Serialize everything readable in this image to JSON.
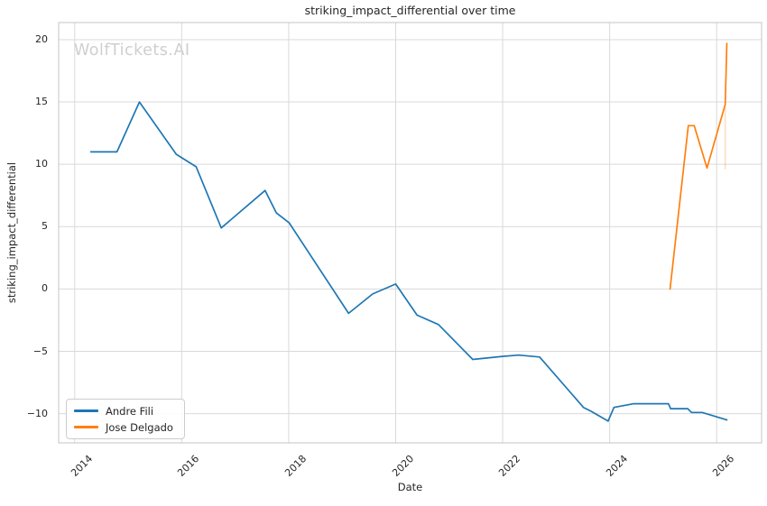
{
  "watermark": {
    "text": "WolfTickets.AI",
    "color": "#cfcfcf"
  },
  "chart_data": {
    "type": "line",
    "title": "striking_impact_differential over time",
    "xlabel": "Date",
    "ylabel": "striking_impact_differential",
    "xlim": [
      2013.7,
      2026.84
    ],
    "ylim": [
      -12.34,
      21.37
    ],
    "grid": true,
    "grid_color": "#d9d9d9",
    "border_color": "#c6c6c6",
    "text_color": "#262626",
    "background": "#ffffff",
    "legend_position": "lower-left",
    "x_ticks": [
      {
        "value": 2014,
        "label": "2014"
      },
      {
        "value": 2016,
        "label": "2016"
      },
      {
        "value": 2018,
        "label": "2018"
      },
      {
        "value": 2020,
        "label": "2020"
      },
      {
        "value": 2022,
        "label": "2022"
      },
      {
        "value": 2024,
        "label": "2024"
      },
      {
        "value": 2026,
        "label": "2026"
      }
    ],
    "y_ticks": [
      {
        "value": 20,
        "label": "20"
      },
      {
        "value": 15,
        "label": "15"
      },
      {
        "value": 10,
        "label": "10"
      },
      {
        "value": 5,
        "label": "5"
      },
      {
        "value": 0,
        "label": "0"
      },
      {
        "value": -5,
        "label": "−5"
      },
      {
        "value": -10,
        "label": "−10"
      }
    ],
    "series": [
      {
        "name": "Andre Fili",
        "color": "#1f77b4",
        "points": [
          [
            2014.3,
            11.0
          ],
          [
            2014.79,
            11.0
          ],
          [
            2015.21,
            15.0
          ],
          [
            2015.9,
            10.8
          ],
          [
            2016.27,
            9.8
          ],
          [
            2016.74,
            4.9
          ],
          [
            2017.56,
            7.9
          ],
          [
            2017.77,
            6.1
          ],
          [
            2018.01,
            5.3
          ],
          [
            2019.12,
            -1.95
          ],
          [
            2019.57,
            -0.4
          ],
          [
            2020.0,
            0.4
          ],
          [
            2020.4,
            -2.1
          ],
          [
            2020.8,
            -2.85
          ],
          [
            2021.44,
            -5.65
          ],
          [
            2022.0,
            -5.4
          ],
          [
            2022.3,
            -5.3
          ],
          [
            2022.69,
            -5.45
          ],
          [
            2023.51,
            -9.5
          ],
          [
            2023.65,
            -9.8
          ],
          [
            2023.97,
            -10.6
          ],
          [
            2024.08,
            -9.5
          ],
          [
            2024.45,
            -9.2
          ],
          [
            2025.1,
            -9.2
          ],
          [
            2025.14,
            -9.6
          ],
          [
            2025.46,
            -9.6
          ],
          [
            2025.53,
            -9.9
          ],
          [
            2025.73,
            -9.9
          ],
          [
            2026.19,
            -10.5
          ]
        ]
      },
      {
        "name": "Jose Delgado",
        "color": "#ff7f0e",
        "points": [
          [
            2025.13,
            0.0
          ],
          [
            2025.47,
            13.1
          ],
          [
            2025.58,
            13.1
          ],
          [
            2025.82,
            9.7
          ],
          [
            2026.16,
            14.8
          ],
          [
            2026.19,
            19.7
          ]
        ]
      }
    ],
    "annotations": [
      {
        "type": "vertical-segment",
        "x": 2026.16,
        "y1": 9.6,
        "y2": 14.8,
        "color": "#ff7f0e",
        "opacity": 0.25
      }
    ]
  }
}
